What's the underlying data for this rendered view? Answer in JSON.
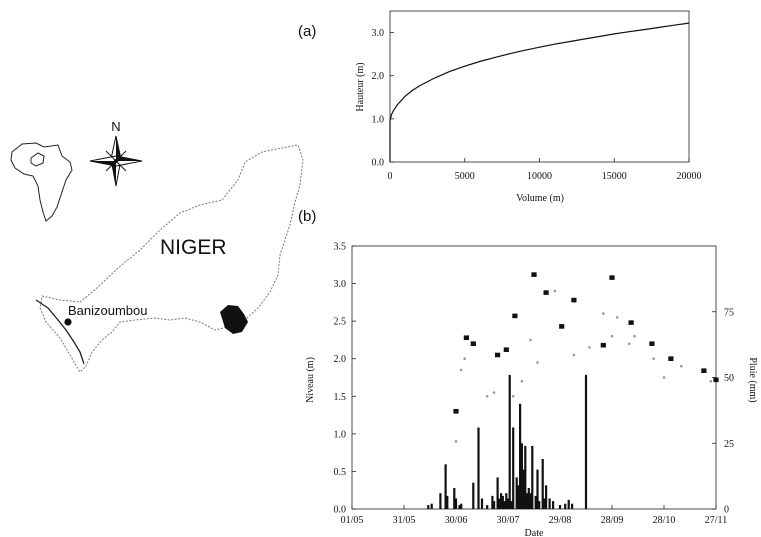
{
  "map": {
    "country_label": "NIGER",
    "site_label": "Banizoumbou",
    "north_label": "N"
  },
  "chart_data": [
    {
      "panel_label": "(a)",
      "type": "line",
      "xlabel": "Volume (m)",
      "ylabel": "Hauteur (m)",
      "xlim": [
        0,
        20000
      ],
      "ylim": [
        0,
        3.5
      ],
      "xticks": [
        "0",
        "5000",
        "10000",
        "15000",
        "20000"
      ],
      "yticks": [
        "0.0",
        "1.0",
        "2.0",
        "3.0"
      ],
      "x": [
        0,
        100,
        250,
        500,
        1000,
        1500,
        2000,
        3000,
        4000,
        5000,
        6000,
        7000,
        8000,
        9000,
        10000,
        11000,
        12000,
        13000,
        14000,
        15000,
        16000,
        17000,
        18000,
        19000,
        20000
      ],
      "y": [
        0.95,
        1.1,
        1.2,
        1.33,
        1.52,
        1.66,
        1.77,
        1.95,
        2.1,
        2.22,
        2.33,
        2.42,
        2.51,
        2.59,
        2.66,
        2.73,
        2.79,
        2.85,
        2.91,
        2.97,
        3.02,
        3.07,
        3.12,
        3.17,
        3.22
      ]
    },
    {
      "panel_label": "(b)",
      "type": "bar",
      "xlabel": "Date",
      "ylabel": "Niveau (m)",
      "y2label": "Pluie (mm)",
      "ylim": [
        0,
        3.5
      ],
      "y2lim": [
        0,
        100
      ],
      "yticks": [
        "0.0",
        "0.5",
        "1.0",
        "1.5",
        "2.0",
        "2.5",
        "3.0",
        "3.5"
      ],
      "y2ticks": [
        "0",
        "25",
        "50",
        "75"
      ],
      "xticks": [
        "01/05",
        "31/05",
        "30/06",
        "30/07",
        "29/08",
        "28/09",
        "28/10",
        "27/11"
      ],
      "xtick_days": [
        0,
        30,
        60,
        90,
        120,
        150,
        180,
        210
      ],
      "series": [
        {
          "kind": "rain-bars",
          "day": [
            44,
            46,
            51,
            54,
            55,
            59,
            60,
            62,
            63,
            70,
            73,
            75,
            78,
            81,
            82,
            84,
            85,
            86,
            87,
            88,
            89,
            90,
            91,
            92,
            93,
            95,
            96,
            97,
            98,
            99,
            100,
            101,
            102,
            103,
            104,
            106,
            107,
            108,
            110,
            111,
            112,
            114,
            116,
            120,
            123,
            125,
            127,
            135
          ],
          "mm": [
            1.5,
            2,
            6,
            17,
            5,
            8,
            4,
            1.5,
            2,
            10,
            31,
            4,
            1.5,
            5,
            3,
            12,
            4,
            6,
            5,
            3,
            6,
            4,
            51,
            3,
            31,
            12,
            9,
            40,
            25,
            15,
            24,
            6,
            8,
            6,
            24,
            5,
            15,
            3,
            19,
            4,
            9,
            4,
            3,
            1.5,
            2,
            3.5,
            2,
            51
          ]
        },
        {
          "kind": "level-points",
          "day": [
            60,
            63,
            65,
            78,
            82,
            93,
            98,
            103,
            107,
            117,
            128,
            137,
            145,
            150,
            153,
            160,
            163,
            174,
            180,
            190,
            207
          ],
          "m": [
            0.9,
            1.85,
            2.0,
            1.5,
            1.55,
            1.5,
            1.7,
            2.25,
            1.95,
            2.9,
            2.05,
            2.15,
            2.6,
            2.3,
            2.55,
            2.2,
            2.3,
            2.0,
            1.75,
            1.9,
            1.7
          ]
        },
        {
          "kind": "level-markers",
          "day": [
            60,
            66,
            70,
            84,
            89,
            94,
            105,
            112,
            121,
            128,
            145,
            150,
            161,
            173,
            184,
            203,
            210
          ],
          "m": [
            1.3,
            2.28,
            2.2,
            2.05,
            2.12,
            2.57,
            3.12,
            2.88,
            2.43,
            2.78,
            2.18,
            3.08,
            2.48,
            2.2,
            2.0,
            1.84,
            1.72
          ]
        }
      ]
    }
  ]
}
